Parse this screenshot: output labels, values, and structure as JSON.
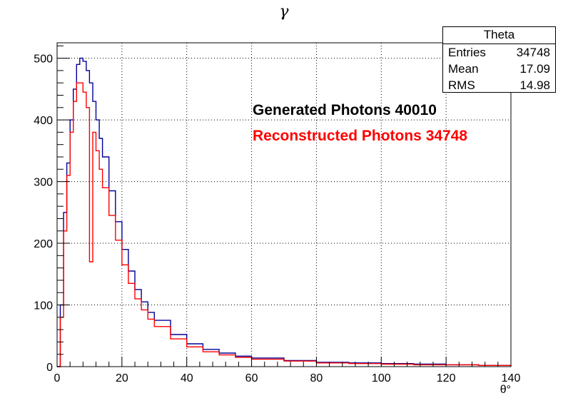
{
  "chart_data": {
    "type": "histogram-step",
    "title": "γ",
    "xlabel": "θ°",
    "ylabel": "",
    "xlim": [
      0,
      140
    ],
    "ylim": [
      0,
      525
    ],
    "x_ticks": [
      0,
      20,
      40,
      60,
      80,
      100,
      120,
      140
    ],
    "y_ticks": [
      0,
      100,
      200,
      300,
      400,
      500
    ],
    "grid": true,
    "stats_box": {
      "title": "Theta",
      "rows": [
        {
          "label": "Entries",
          "value": "34748"
        },
        {
          "label": "Mean",
          "value": "17.09"
        },
        {
          "label": "RMS",
          "value": "14.98"
        }
      ]
    },
    "annotations": [
      {
        "text": "Generated Photons 40010",
        "color": "#000000"
      },
      {
        "text": "Reconstructed Photons 34748",
        "color": "#ff0000"
      }
    ],
    "series": [
      {
        "name": "Generated Photons",
        "color": "#000099",
        "x": [
          0,
          1,
          2,
          3,
          4,
          5,
          6,
          7,
          8,
          9,
          10,
          11,
          12,
          13,
          14,
          16,
          18,
          20,
          22,
          24,
          26,
          28,
          30,
          35,
          40,
          45,
          50,
          55,
          60,
          70,
          80,
          90,
          100,
          110,
          120,
          130,
          140
        ],
        "y": [
          0,
          100,
          250,
          330,
          400,
          450,
          490,
          500,
          495,
          480,
          460,
          430,
          400,
          370,
          340,
          285,
          235,
          190,
          155,
          125,
          105,
          88,
          75,
          52,
          37,
          28,
          22,
          17,
          14,
          10,
          7,
          6,
          5,
          4,
          3,
          2,
          1
        ]
      },
      {
        "name": "Reconstructed Photons",
        "color": "#ff0000",
        "x": [
          0,
          1,
          2,
          3,
          4,
          5,
          6,
          7,
          8,
          9,
          10,
          11,
          12,
          13,
          14,
          16,
          18,
          20,
          22,
          24,
          26,
          28,
          30,
          35,
          40,
          45,
          50,
          55,
          60,
          70,
          80,
          90,
          100,
          110,
          120,
          130,
          140
        ],
        "y": [
          0,
          80,
          220,
          310,
          380,
          430,
          460,
          460,
          445,
          420,
          170,
          380,
          350,
          320,
          290,
          245,
          205,
          165,
          135,
          110,
          92,
          77,
          65,
          45,
          32,
          24,
          19,
          15,
          12,
          9,
          6,
          5,
          4,
          3,
          3,
          2,
          1
        ]
      }
    ]
  }
}
